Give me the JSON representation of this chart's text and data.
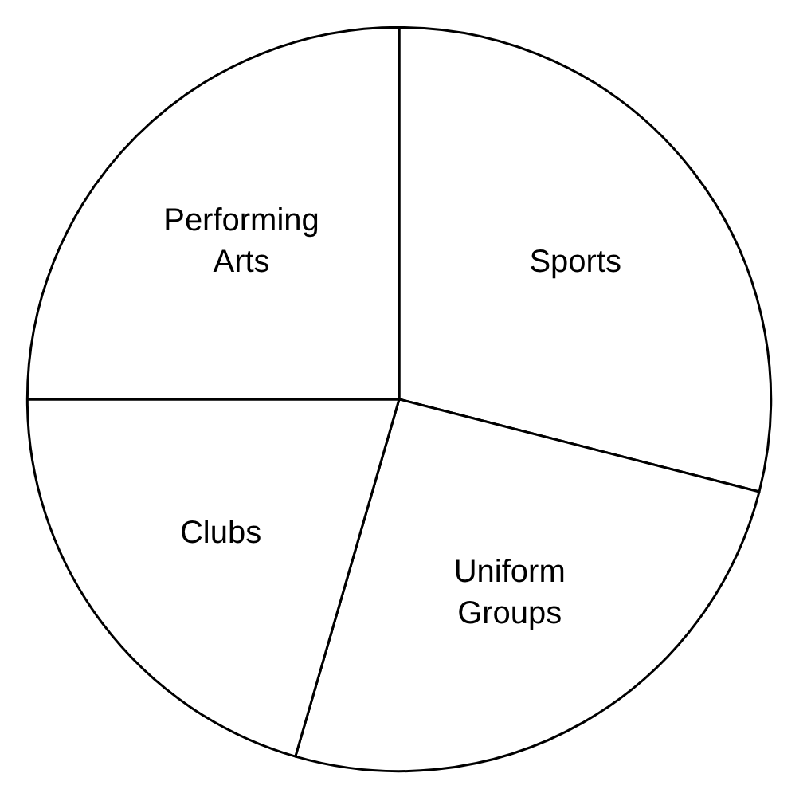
{
  "chart_data": {
    "type": "pie",
    "categories": [
      "Sports",
      "Uniform Groups",
      "Clubs",
      "Performing Arts"
    ],
    "values": [
      29,
      25.5,
      20.5,
      25
    ],
    "colors": [
      "#ffffff",
      "#ffffff",
      "#ffffff",
      "#ffffff"
    ]
  }
}
